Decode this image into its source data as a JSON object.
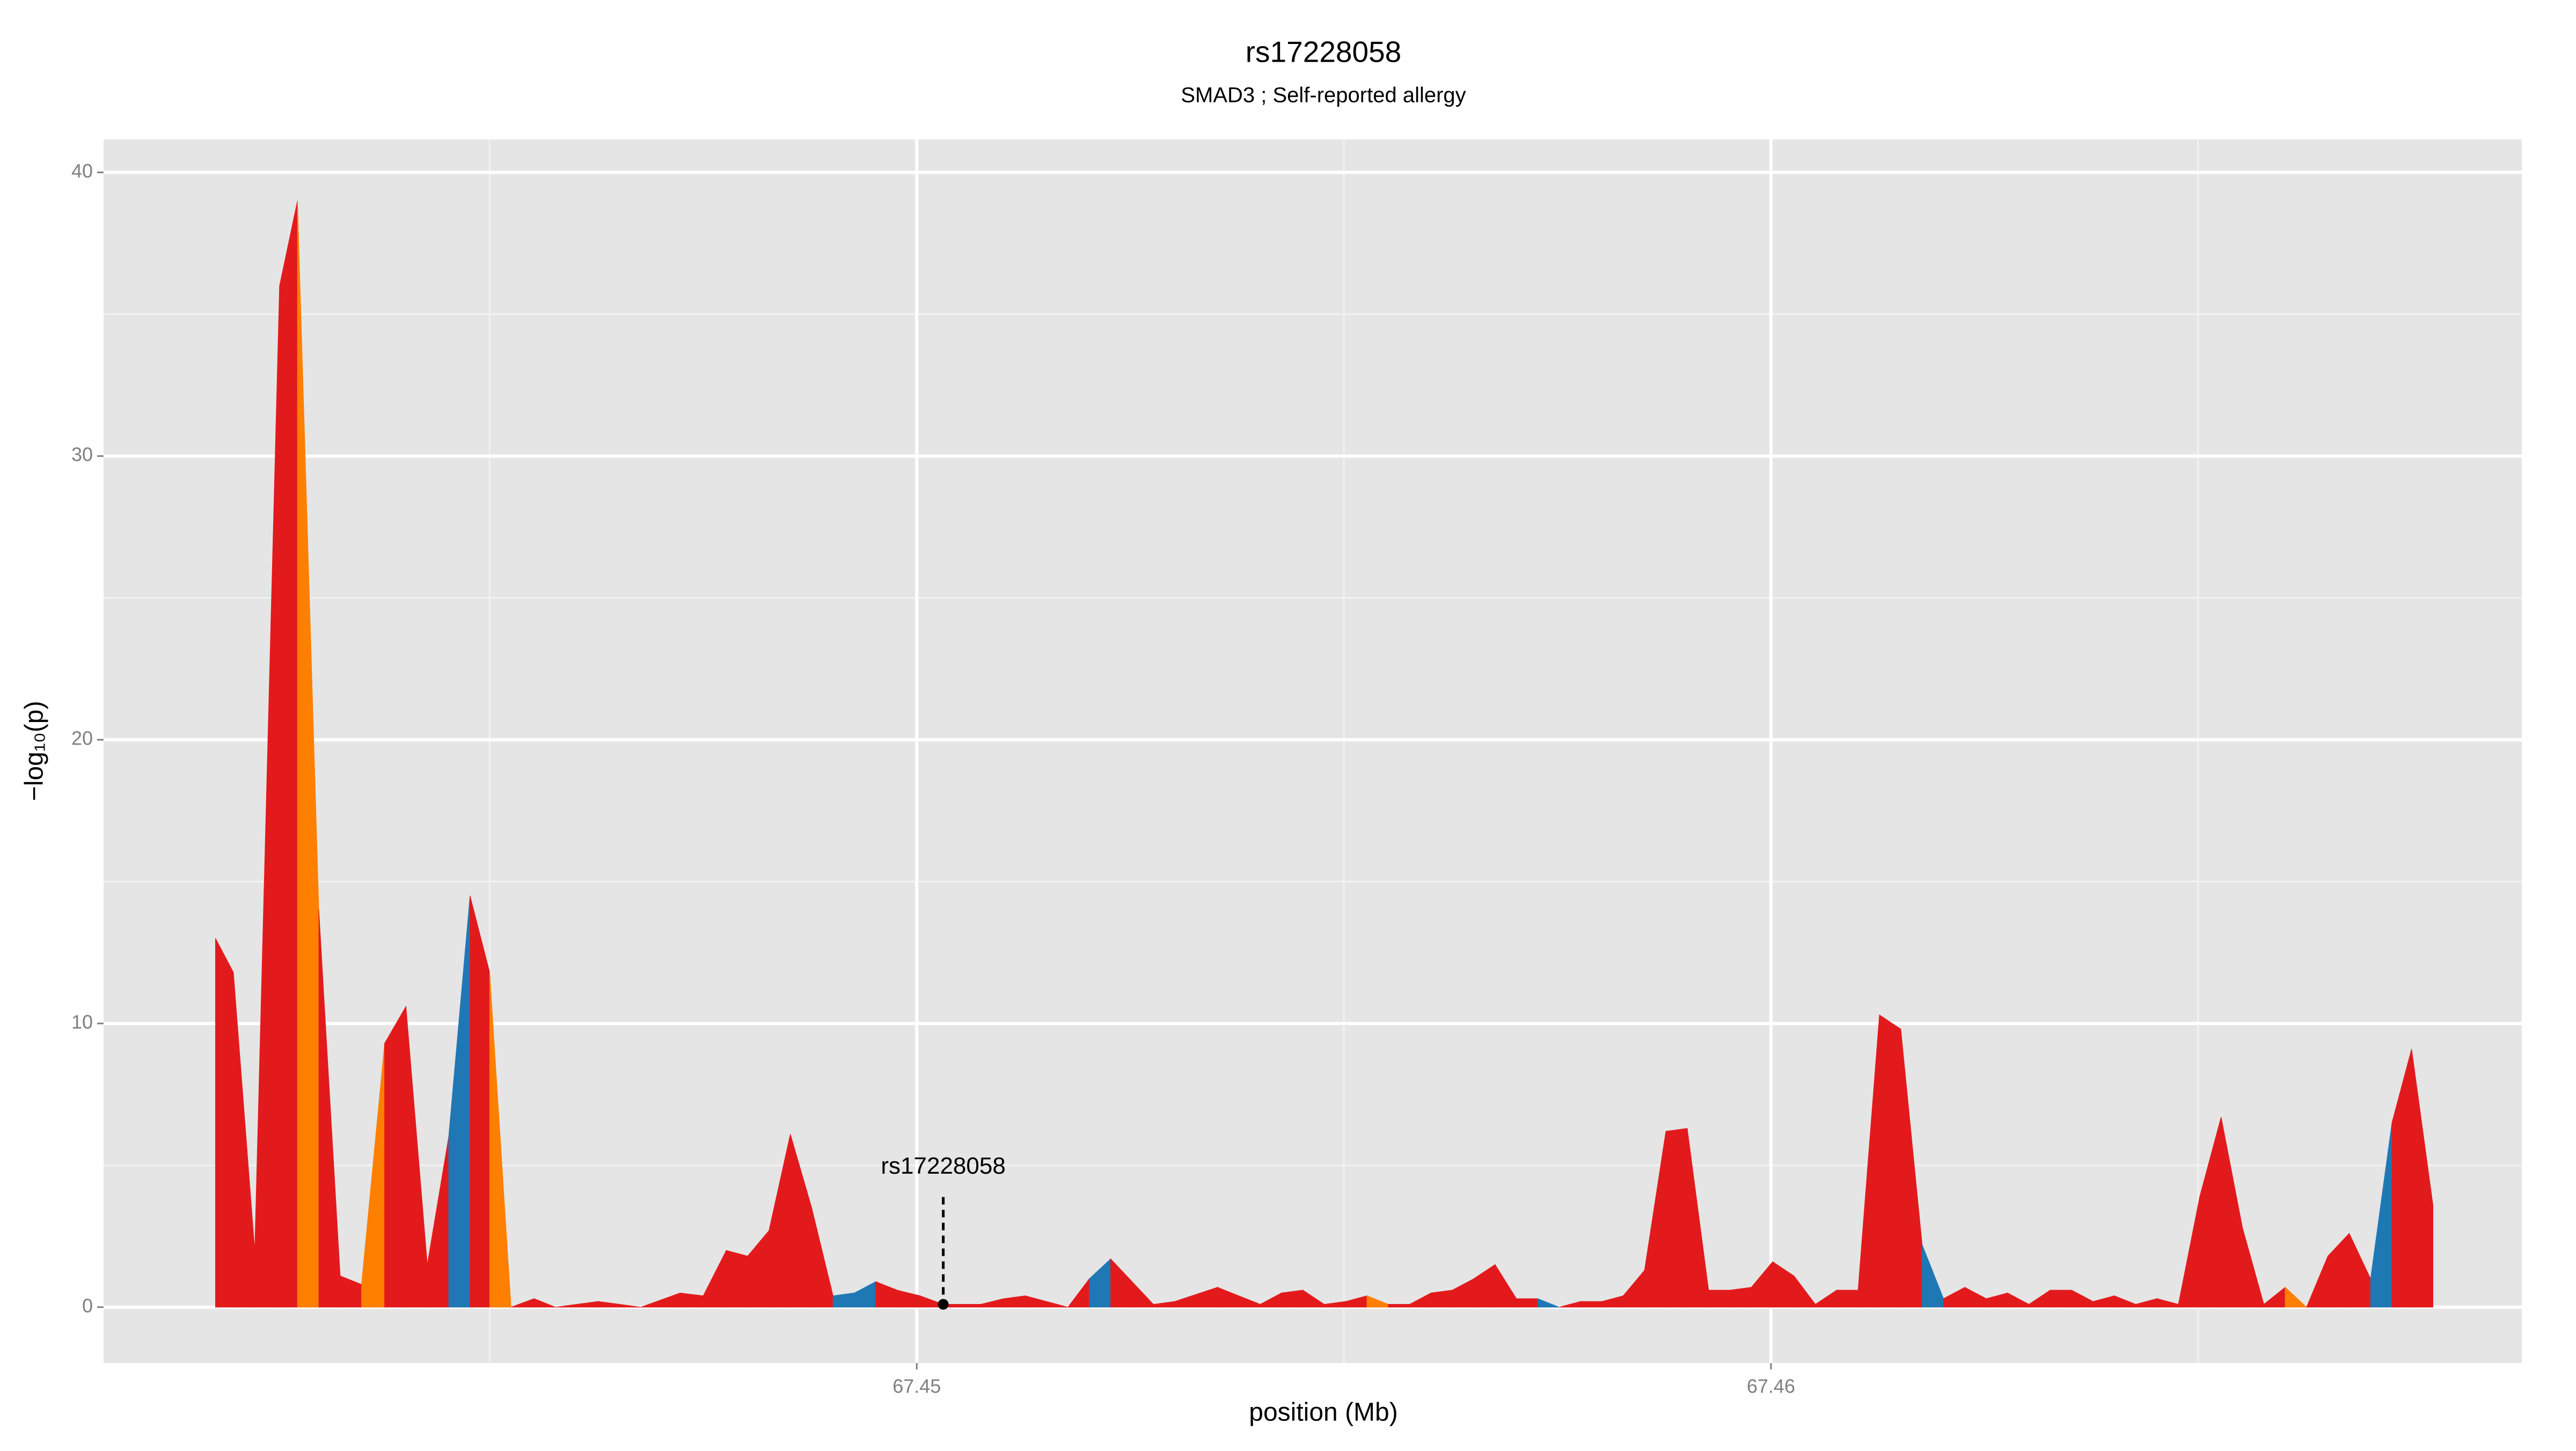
{
  "chart_data": {
    "type": "area",
    "title": "rs17228058",
    "subtitle": "SMAD3 ; Self-reported allergy",
    "x_label": "position (Mb)",
    "y_label": "−log₁₀(p)",
    "xlim": [
      67.44048,
      67.46879
    ],
    "ylim": [
      -1.97,
      41.16
    ],
    "xticks": [
      67.45,
      67.46
    ],
    "yticks": [
      0,
      10,
      20,
      30,
      40
    ],
    "minor_xticks": [
      67.445,
      67.455,
      67.465
    ],
    "minor_yticks": [
      5,
      15,
      25,
      35
    ],
    "grid": true,
    "x": [
      67.44179,
      67.442,
      67.44225,
      67.44254,
      67.44275,
      67.443,
      67.44325,
      67.4435,
      67.44377,
      67.44402,
      67.44427,
      67.44452,
      67.44477,
      67.445,
      67.44525,
      67.44552,
      67.44577,
      67.44627,
      67.44677,
      67.44723,
      67.4475,
      67.44777,
      67.44802,
      67.44827,
      67.44852,
      67.44877,
      67.44902,
      67.44927,
      67.44952,
      67.44977,
      67.45004,
      67.45031,
      67.45075,
      67.45102,
      67.45127,
      67.45177,
      67.45202,
      67.45227,
      67.45252,
      67.45277,
      67.45302,
      67.45352,
      67.45402,
      67.45427,
      67.45452,
      67.45477,
      67.45502,
      67.45527,
      67.45552,
      67.45577,
      67.45602,
      67.45627,
      67.45652,
      67.45677,
      67.45702,
      67.45727,
      67.45752,
      67.45777,
      67.45802,
      67.45827,
      67.45852,
      67.45877,
      67.45902,
      67.45927,
      67.45952,
      67.45977,
      67.46002,
      67.46027,
      67.46052,
      67.46077,
      67.46102,
      67.46127,
      67.46152,
      67.46177,
      67.46202,
      67.46227,
      67.46252,
      67.46277,
      67.46302,
      67.46327,
      67.46352,
      67.46377,
      67.46402,
      67.46427,
      67.46452,
      67.46477,
      67.46502,
      67.46527,
      67.46552,
      67.46577,
      67.46602,
      67.46627,
      67.46652,
      67.46677,
      67.46702,
      67.46727,
      67.4675,
      67.46775
    ],
    "values": [
      13,
      11.8,
      2,
      36,
      39,
      14,
      1.1,
      0.8,
      9.3,
      10.6,
      1.5,
      6,
      14.5,
      11.8,
      0,
      0.3,
      0,
      0.2,
      0,
      0.5,
      0.4,
      2,
      1.8,
      2.7,
      6.1,
      3.5,
      0.4,
      0.5,
      0.9,
      0.6,
      0.4,
      0.1,
      0.1,
      0.3,
      0.4,
      0,
      1,
      1.7,
      0.9,
      0.1,
      0.2,
      0.7,
      0.1,
      0.5,
      0.6,
      0.1,
      0.2,
      0.4,
      0.1,
      0.1,
      0.5,
      0.6,
      1,
      1.5,
      0.3,
      0.3,
      0,
      0.2,
      0.2,
      0.4,
      1.3,
      6.2,
      6.3,
      0.6,
      0.6,
      0.7,
      1.6,
      1.1,
      0.1,
      0.6,
      0.6,
      10.3,
      9.8,
      2.2,
      0.3,
      0.7,
      0.3,
      0.5,
      0.1,
      0.6,
      0.6,
      0.2,
      0.4,
      0.1,
      0.3,
      0.1,
      3.9,
      6.7,
      2.8,
      0.1,
      0.7,
      0,
      1.8,
      2.6,
      1,
      6.5,
      9.1,
      3.6
    ],
    "colors": [
      "#e31a1c",
      "#e31a1c",
      "#e31a1c",
      "#e31a1c",
      "#ff7f00",
      "#e31a1c",
      "#e31a1c",
      "#ff7f00",
      "#e31a1c",
      "#e31a1c",
      "#e31a1c",
      "#1f78b4",
      "#e31a1c",
      "#ff7f00",
      "#e31a1c",
      "#e31a1c",
      "#e31a1c",
      "#e31a1c",
      "#e31a1c",
      "#e31a1c",
      "#e31a1c",
      "#e31a1c",
      "#e31a1c",
      "#e31a1c",
      "#e31a1c",
      "#e31a1c",
      "#1f78b4",
      "#1f78b4",
      "#e31a1c",
      "#e31a1c",
      "#e31a1c",
      "#e31a1c",
      "#e31a1c",
      "#e31a1c",
      "#e31a1c",
      "#e31a1c",
      "#1f78b4",
      "#e31a1c",
      "#e31a1c",
      "#e31a1c",
      "#e31a1c",
      "#e31a1c",
      "#e31a1c",
      "#e31a1c",
      "#e31a1c",
      "#e31a1c",
      "#e31a1c",
      "#ff7f00",
      "#e31a1c",
      "#e31a1c",
      "#e31a1c",
      "#e31a1c",
      "#e31a1c",
      "#e31a1c",
      "#e31a1c",
      "#1f78b4",
      "#e31a1c",
      "#e31a1c",
      "#e31a1c",
      "#e31a1c",
      "#e31a1c",
      "#e31a1c",
      "#e31a1c",
      "#e31a1c",
      "#e31a1c",
      "#e31a1c",
      "#e31a1c",
      "#e31a1c",
      "#e31a1c",
      "#e31a1c",
      "#e31a1c",
      "#e31a1c",
      "#e31a1c",
      "#1f78b4",
      "#e31a1c",
      "#e31a1c",
      "#e31a1c",
      "#e31a1c",
      "#e31a1c",
      "#e31a1c",
      "#e31a1c",
      "#e31a1c",
      "#e31a1c",
      "#e31a1c",
      "#e31a1c",
      "#e31a1c",
      "#e31a1c",
      "#e31a1c",
      "#e31a1c",
      "#e31a1c",
      "#ff7f00",
      "#e31a1c",
      "#e31a1c",
      "#e31a1c",
      "#1f78b4",
      "#e31a1c",
      "#e31a1c",
      "#e31a1c"
    ],
    "highlight": {
      "label": "rs17228058",
      "x": 67.45031,
      "y": 0.1
    }
  }
}
